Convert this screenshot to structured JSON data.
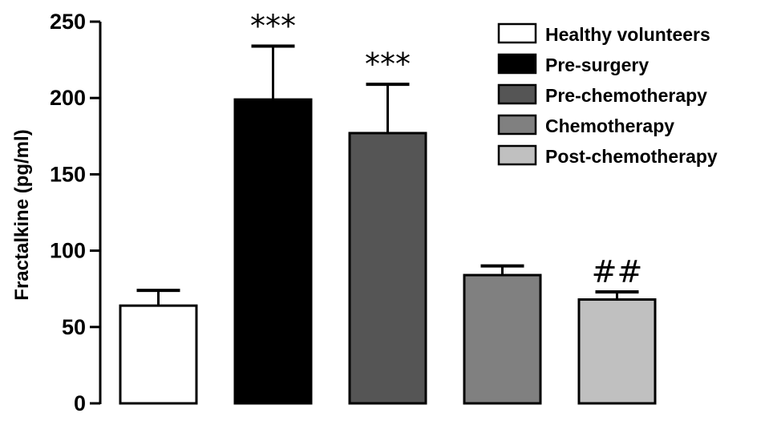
{
  "chart_data": {
    "type": "bar",
    "ylabel": "Fractalkine (pg/ml)",
    "ylim": [
      0,
      250
    ],
    "yticks": [
      0,
      50,
      100,
      150,
      200,
      250
    ],
    "yticks_labels": [
      "0",
      "50",
      "100",
      "150",
      "200",
      "250"
    ],
    "grid": false,
    "legend_position": "top-right",
    "series": [
      {
        "name": "Healthy volunteers",
        "value": 64,
        "error": 10,
        "color": "#ffffff",
        "annotation": ""
      },
      {
        "name": "Pre-surgery",
        "value": 199,
        "error": 35,
        "color": "#000000",
        "annotation": "***"
      },
      {
        "name": "Pre-chemotherapy",
        "value": 177,
        "error": 32,
        "color": "#555555",
        "annotation": "***"
      },
      {
        "name": "Chemotherapy",
        "value": 84,
        "error": 6,
        "color": "#808080",
        "annotation": ""
      },
      {
        "name": "Post-chemotherapy",
        "value": 68,
        "error": 5,
        "color": "#c0c0c0",
        "annotation": "##"
      }
    ]
  }
}
